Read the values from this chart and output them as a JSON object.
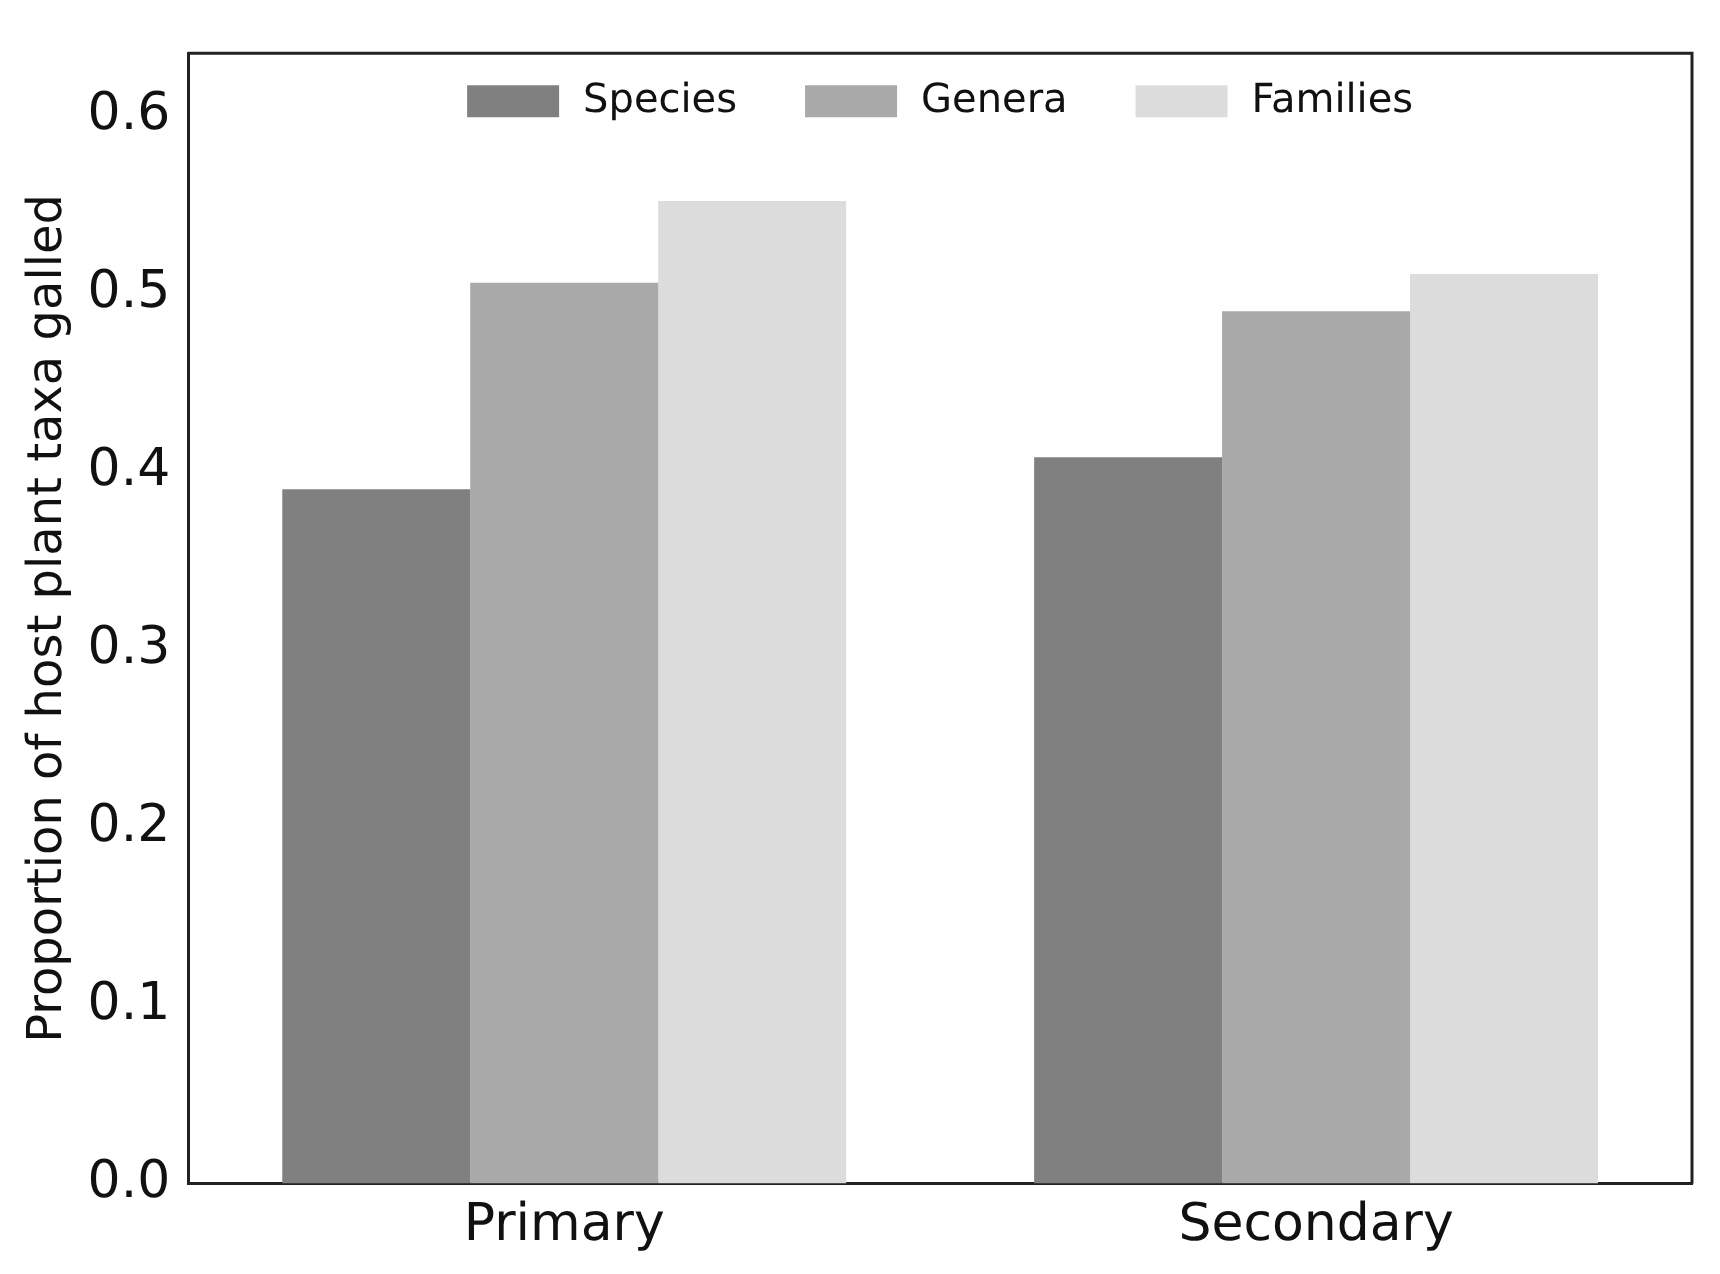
{
  "chart_data": {
    "type": "bar",
    "categories": [
      "Primary",
      "Secondary"
    ],
    "ylabel": "Proportion of host plant taxa galled",
    "series": [
      {
        "name": "Species",
        "color": "#808080",
        "values": [
          0.39,
          0.408
        ]
      },
      {
        "name": "Genera",
        "color": "#a9a9a9",
        "values": [
          0.506,
          0.49
        ]
      },
      {
        "name": "Families",
        "color": "#dcdcdc",
        "values": [
          0.552,
          0.511
        ]
      }
    ],
    "ylim": [
      0,
      0.635
    ],
    "yticks": [
      {
        "value": 0,
        "label": "0.0"
      },
      0.1,
      0.2,
      0.3,
      0.4,
      0.5,
      0.6
    ],
    "grid": false,
    "legend": "top"
  }
}
